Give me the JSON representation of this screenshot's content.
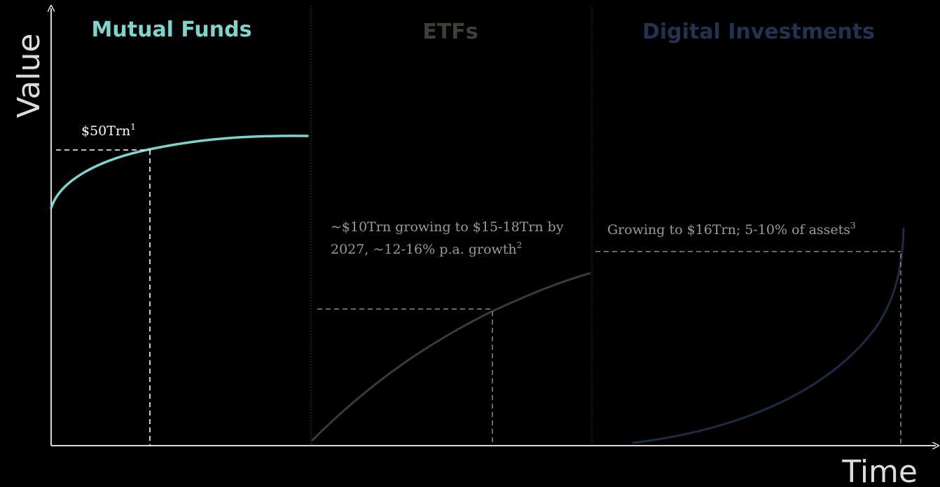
{
  "chart_data": {
    "type": "line",
    "xlabel": "Time",
    "ylabel": "Value",
    "colors": {
      "background": "#000000",
      "axis": "#d9d9d9",
      "divider": "#444444",
      "mutual_funds": "#7ed3cd",
      "etfs": "#3b3c2f",
      "digital": "#1c2c44",
      "annotation_mf": "#ffffff",
      "annotation_other": "#9a9a9a"
    },
    "panels": [
      {
        "title": "Mutual Funds",
        "curve": "concave-saturating",
        "annotation": {
          "text": "$50Trn",
          "sup": "1"
        }
      },
      {
        "title": "ETFs",
        "curve": "concave-rising",
        "annotation": {
          "line1": "~$10Trn growing to $15-18Trn by",
          "line2": "2027, ~12-16% p.a. growth",
          "sup": "2"
        }
      },
      {
        "title": "Digital Investments",
        "curve": "exponential",
        "annotation": {
          "text": "Growing to $16Trn; 5-10% of assets",
          "sup": "3"
        }
      }
    ]
  }
}
